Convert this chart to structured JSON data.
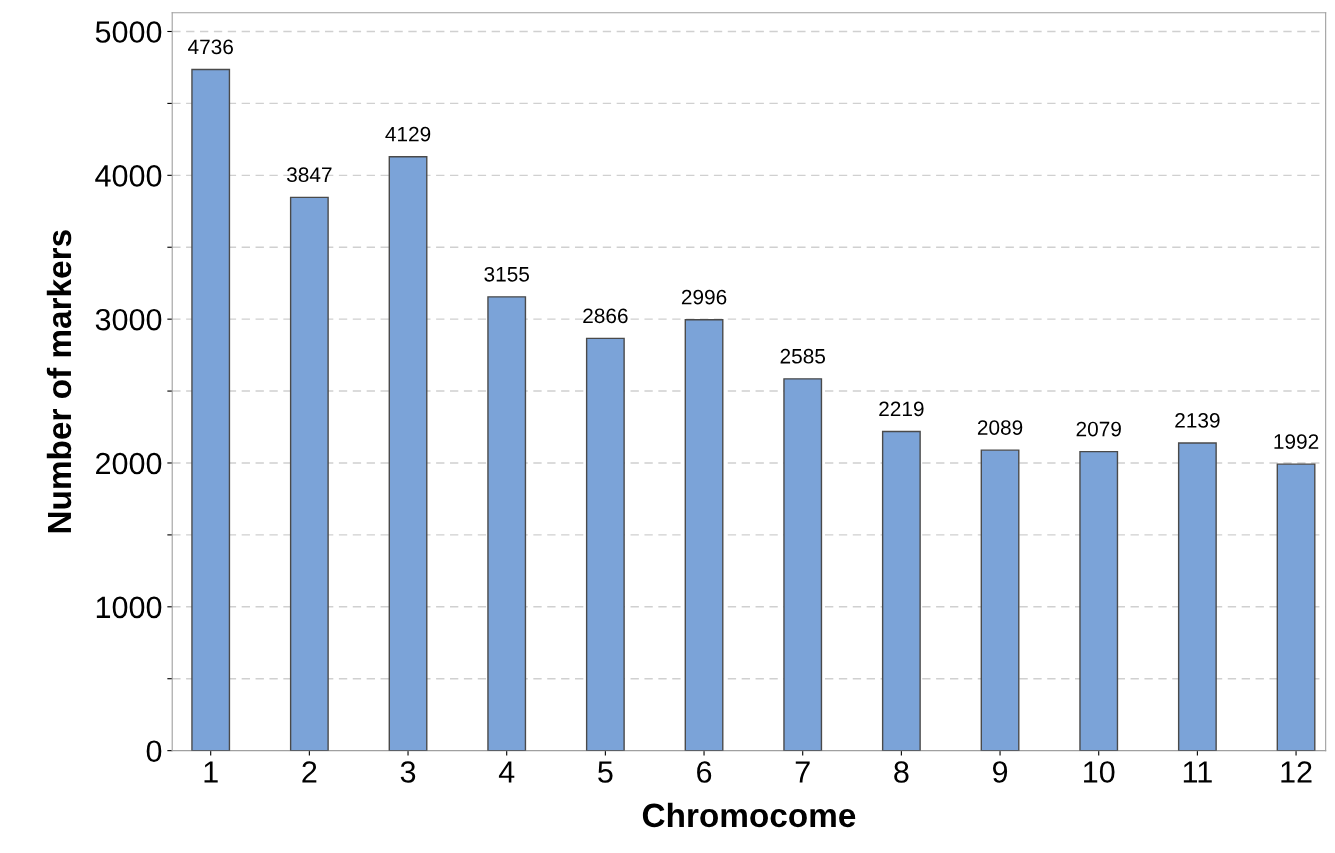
{
  "chart_data": {
    "type": "bar",
    "xlabel": "Chromocome",
    "ylabel": "Number of markers",
    "categories": [
      "1",
      "2",
      "3",
      "4",
      "5",
      "6",
      "7",
      "8",
      "9",
      "10",
      "11",
      "12"
    ],
    "values": [
      4736,
      3847,
      4129,
      3155,
      2866,
      2996,
      2585,
      2219,
      2089,
      2079,
      2139,
      1992
    ],
    "color": "#7ba3d8",
    "data_labels": true,
    "ylim": [
      0,
      5130
    ],
    "yticks": [
      0,
      {
        "value": 500,
        "label": null
      },
      1000,
      {
        "value": 1500,
        "label": null
      },
      2000,
      {
        "value": 2500,
        "label": null
      },
      3000,
      {
        "value": 3500,
        "label": null
      },
      4000,
      {
        "value": 4500,
        "label": null
      },
      5000
    ],
    "grid": "y",
    "legend": false
  }
}
